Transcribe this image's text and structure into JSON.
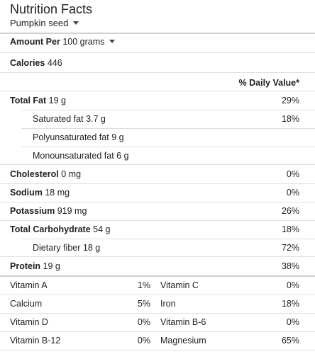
{
  "header": {
    "title": "Nutrition Facts",
    "food": "Pumpkin seed"
  },
  "amount": {
    "label": "Amount Per",
    "value": "100 grams"
  },
  "calories": {
    "label": "Calories",
    "value": "446"
  },
  "daily_value_header": "% Daily Value*",
  "nutrients": [
    {
      "label": "Total Fat",
      "amount": "19 g",
      "pct": "29%"
    },
    {
      "label": "Saturated fat",
      "amount": "3.7 g",
      "pct": "18%"
    },
    {
      "label": "Polyunsaturated fat",
      "amount": "9 g",
      "pct": ""
    },
    {
      "label": "Monounsaturated fat",
      "amount": "6 g",
      "pct": ""
    },
    {
      "label": "Cholesterol",
      "amount": "0 mg",
      "pct": "0%"
    },
    {
      "label": "Sodium",
      "amount": "18 mg",
      "pct": "0%"
    },
    {
      "label": "Potassium",
      "amount": "919 mg",
      "pct": "26%"
    },
    {
      "label": "Total Carbohydrate",
      "amount": "54 g",
      "pct": "18%"
    },
    {
      "label": "Dietary fiber",
      "amount": "18 g",
      "pct": "72%"
    },
    {
      "label": "Protein",
      "amount": "19 g",
      "pct": "38%"
    }
  ],
  "vitamins": [
    {
      "left_label": "Vitamin A",
      "left_pct": "1%",
      "right_label": "Vitamin C",
      "right_pct": "0%"
    },
    {
      "left_label": "Calcium",
      "left_pct": "5%",
      "right_label": "Iron",
      "right_pct": "18%"
    },
    {
      "left_label": "Vitamin D",
      "left_pct": "0%",
      "right_label": "Vitamin B-6",
      "right_pct": "0%"
    },
    {
      "left_label": "Vitamin B-12",
      "left_pct": "0%",
      "right_label": "Magnesium",
      "right_pct": "65%"
    }
  ]
}
